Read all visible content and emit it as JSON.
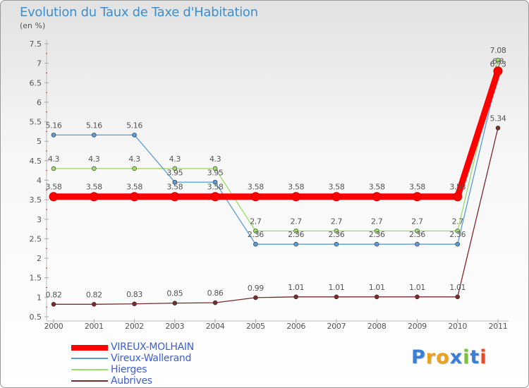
{
  "title": "Evolution du Taux de Taxe d'Habitation",
  "subtitle": "(en %)",
  "logo": "Proxiti",
  "chart_data": {
    "type": "line",
    "x": [
      "2000",
      "2001",
      "2002",
      "2003",
      "2004",
      "2005",
      "2006",
      "2007",
      "2008",
      "2009",
      "2010",
      "2011"
    ],
    "ylim": [
      0.5,
      7.5
    ],
    "yticks": [
      "0.5",
      "1",
      "1.5",
      "2",
      "2.5",
      "3",
      "3.5",
      "4",
      "4.5",
      "5",
      "5.5",
      "6",
      "6.5",
      "7",
      "7.5"
    ],
    "grid": false,
    "legend_position": "bottom-left",
    "series": [
      {
        "name": "Aubrives",
        "color": "#7a2a2a",
        "values": [
          0.82,
          0.82,
          0.83,
          0.85,
          0.86,
          0.99,
          1.01,
          1.01,
          1.01,
          1.01,
          1.01,
          5.34
        ],
        "labels": [
          "0.82",
          "0.82",
          "0.83",
          "0.85",
          "0.86",
          "0.99",
          "1.01",
          "1.01",
          "1.01",
          "1.01",
          "1.01",
          "5.34"
        ]
      },
      {
        "name": "Hierges",
        "color": "#99dd66",
        "values": [
          4.3,
          4.3,
          4.3,
          4.3,
          4.3,
          2.7,
          2.7,
          2.7,
          2.7,
          2.7,
          2.7,
          7.08
        ],
        "labels": [
          "4.3",
          "4.3",
          "4.3",
          "4.3",
          "4.3",
          "2.7",
          "2.7",
          "2.7",
          "2.7",
          "2.7",
          "2.7",
          "7.08"
        ]
      },
      {
        "name": "Vireux-Wallerand",
        "color": "#5b9bd5",
        "values": [
          5.16,
          5.16,
          5.16,
          3.95,
          3.95,
          2.36,
          2.36,
          2.36,
          2.36,
          2.36,
          2.36,
          6.73
        ],
        "labels": [
          "5.16",
          "5.16",
          "5.16",
          "3.95",
          "3.95",
          "2.36",
          "2.36",
          "2.36",
          "2.36",
          "2.36",
          "2.36",
          "6.73"
        ]
      },
      {
        "name": "VIREUX-MOLHAIN",
        "color": "#ff0000",
        "values": [
          3.58,
          3.58,
          3.58,
          3.58,
          3.58,
          3.58,
          3.58,
          3.58,
          3.58,
          3.58,
          3.58,
          6.8
        ],
        "labels": [
          "3.58",
          "3.58",
          "3.58",
          "3.58",
          "3.58",
          "3.58",
          "3.58",
          "3.58",
          "3.58",
          "3.58",
          "3.58",
          "6.8"
        ]
      }
    ],
    "legend_order": [
      "VIREUX-MOLHAIN",
      "Vireux-Wallerand",
      "Hierges",
      "Aubrives"
    ]
  }
}
